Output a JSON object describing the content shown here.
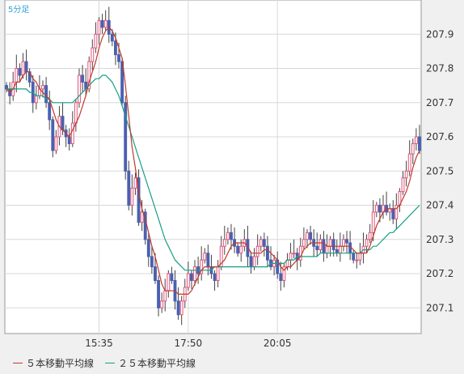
{
  "chart_data": {
    "type": "candlestick",
    "timeframe_label": "5分足",
    "x_tick_labels": [
      "15:35",
      "17:50",
      "20:05"
    ],
    "y_ticks": [
      207.1,
      207.2,
      207.3,
      207.4,
      207.5,
      207.6,
      207.7,
      207.8,
      207.9
    ],
    "ylim": [
      207.025,
      208.0
    ],
    "candle_count": 126,
    "x_tick_candle_index": [
      28,
      55,
      82
    ],
    "colors": {
      "up": "#e0557a",
      "down": "#4a60b0",
      "wick": "#444444",
      "ma5": "#c0392b",
      "ma25": "#16a085",
      "grid": "#d8d8d8",
      "plot_bg": "#ffffff",
      "frame": "#999999"
    },
    "series": [
      {
        "name": "５本移動平均線",
        "key": "ma5"
      },
      {
        "name": "２５本移動平均線",
        "key": "ma25"
      }
    ],
    "candles_close": [
      207.74,
      207.72,
      207.76,
      207.8,
      207.78,
      207.82,
      207.79,
      207.76,
      207.7,
      207.72,
      207.74,
      207.75,
      207.7,
      207.65,
      207.56,
      207.6,
      207.66,
      207.62,
      207.6,
      207.58,
      207.64,
      207.7,
      207.78,
      207.76,
      207.74,
      207.82,
      207.86,
      207.9,
      207.94,
      207.92,
      207.94,
      207.9,
      207.88,
      207.84,
      207.82,
      207.7,
      207.5,
      207.4,
      207.45,
      207.48,
      207.35,
      207.38,
      207.3,
      207.25,
      207.22,
      207.18,
      207.1,
      207.12,
      207.15,
      207.2,
      207.18,
      207.12,
      207.08,
      207.12,
      207.16,
      207.2,
      207.18,
      207.22,
      207.2,
      207.24,
      207.26,
      207.22,
      207.2,
      207.18,
      207.22,
      207.28,
      207.3,
      207.32,
      207.3,
      207.28,
      207.26,
      207.28,
      207.3,
      207.25,
      207.22,
      207.25,
      207.28,
      207.3,
      207.28,
      207.24,
      207.22,
      207.24,
      207.2,
      207.18,
      207.22,
      207.24,
      207.26,
      207.26,
      207.24,
      207.28,
      207.3,
      207.32,
      207.3,
      207.28,
      207.27,
      207.3,
      207.26,
      207.28,
      207.3,
      207.27,
      207.26,
      207.28,
      207.3,
      207.29,
      207.26,
      207.24,
      207.24,
      207.26,
      207.28,
      207.3,
      207.32,
      207.38,
      207.4,
      207.38,
      207.4,
      207.38,
      207.39,
      207.36,
      207.4,
      207.44,
      207.48,
      207.5,
      207.55,
      207.58,
      207.6,
      207.56
    ],
    "ma5_values": [
      207.74,
      207.73,
      207.74,
      207.76,
      207.76,
      207.78,
      207.79,
      207.79,
      207.77,
      207.76,
      207.74,
      207.73,
      207.72,
      207.71,
      207.68,
      207.65,
      207.63,
      207.62,
      207.61,
      207.6,
      207.62,
      207.64,
      207.66,
      207.69,
      207.72,
      207.76,
      207.79,
      207.82,
      207.86,
      207.89,
      207.91,
      207.92,
      207.91,
      207.89,
      207.86,
      207.83,
      207.75,
      207.66,
      207.57,
      207.51,
      207.44,
      207.39,
      207.36,
      207.32,
      207.28,
      207.25,
      207.21,
      207.17,
      207.15,
      207.15,
      207.15,
      207.15,
      207.14,
      207.14,
      207.14,
      207.14,
      207.15,
      207.17,
      207.19,
      207.21,
      207.22,
      207.22,
      207.22,
      207.22,
      207.22,
      207.23,
      207.24,
      207.26,
      207.28,
      207.29,
      207.29,
      207.29,
      207.29,
      207.28,
      207.26,
      207.26,
      207.26,
      207.26,
      207.27,
      207.27,
      207.26,
      207.25,
      207.24,
      207.22,
      207.21,
      207.22,
      207.22,
      207.23,
      207.24,
      207.25,
      207.27,
      207.28,
      207.29,
      207.29,
      207.29,
      207.29,
      207.29,
      207.28,
      207.28,
      207.28,
      207.28,
      207.28,
      207.28,
      207.28,
      207.28,
      207.27,
      207.26,
      207.26,
      207.26,
      207.26,
      207.28,
      207.31,
      207.34,
      207.36,
      207.38,
      207.39,
      207.39,
      207.39,
      207.39,
      207.4,
      207.42,
      207.44,
      207.47,
      207.51,
      207.54,
      207.56
    ],
    "ma25_values": [
      207.74,
      207.74,
      207.74,
      207.74,
      207.74,
      207.74,
      207.74,
      207.73,
      207.73,
      207.72,
      207.72,
      207.72,
      207.71,
      207.71,
      207.7,
      207.7,
      207.7,
      207.7,
      207.7,
      207.7,
      207.7,
      207.71,
      207.72,
      207.73,
      207.74,
      207.75,
      207.76,
      207.77,
      207.77,
      207.78,
      207.78,
      207.77,
      207.76,
      207.74,
      207.72,
      207.69,
      207.66,
      207.63,
      207.6,
      207.57,
      207.54,
      207.51,
      207.48,
      207.45,
      207.42,
      207.39,
      207.36,
      207.33,
      207.3,
      207.28,
      207.26,
      207.24,
      207.23,
      207.22,
      207.21,
      207.21,
      207.21,
      207.21,
      207.21,
      207.21,
      207.21,
      207.21,
      207.21,
      207.22,
      207.22,
      207.22,
      207.22,
      207.22,
      207.22,
      207.22,
      207.22,
      207.22,
      207.22,
      207.22,
      207.22,
      207.22,
      207.22,
      207.22,
      207.22,
      207.22,
      207.23,
      207.23,
      207.23,
      207.23,
      207.23,
      207.24,
      207.24,
      207.24,
      207.25,
      207.25,
      207.25,
      207.25,
      207.25,
      207.25,
      207.25,
      207.26,
      207.26,
      207.26,
      207.26,
      207.26,
      207.26,
      207.26,
      207.26,
      207.26,
      207.26,
      207.26,
      207.26,
      207.26,
      207.27,
      207.27,
      207.27,
      207.28,
      207.28,
      207.29,
      207.3,
      207.31,
      207.32,
      207.32,
      207.33,
      207.34,
      207.35,
      207.36,
      207.37,
      207.38,
      207.39,
      207.4
    ]
  }
}
